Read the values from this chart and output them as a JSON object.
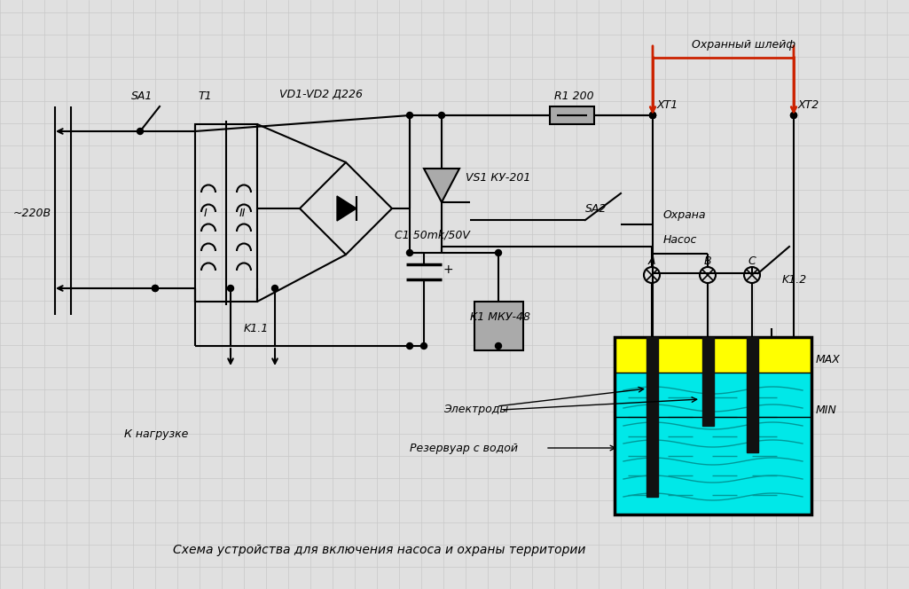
{
  "bg_color": "#e0e0e0",
  "grid_color": "#c8c8c8",
  "lc": "#000000",
  "red": "#cc2200",
  "gray": "#aaaaaa",
  "yellow": "#ffff00",
  "cyan": "#00e8e8",
  "dark": "#111111",
  "title": "Схема устройства для включения насоса и охраны территории",
  "lbl_voltage": "~220В",
  "lbl_SA1": "SA1",
  "lbl_T1": "T1",
  "lbl_VD": "VD1-VD2 Д226",
  "lbl_C1": "C1 50mk/50V",
  "lbl_K1": "K1 МКУ-48",
  "lbl_K11": "K1.1",
  "lbl_K12": "K1.2",
  "lbl_VS1": "VS1 КУ-201",
  "lbl_R1": "R1 200",
  "lbl_SA2": "SA2",
  "lbl_XT1": "XT1",
  "lbl_XT2": "XT2",
  "lbl_shleyf": "Охранный шлейф",
  "lbl_okhrana": "Охрана",
  "lbl_nasos": "Насос",
  "lbl_A": "A",
  "lbl_B": "B",
  "lbl_C": "C",
  "lbl_load": "К нагрузке",
  "lbl_el": "Электроды",
  "lbl_res": "Резервуар с водой",
  "lbl_MAX": "MAX",
  "lbl_MIN": "MIN",
  "lbl_I": "I",
  "lbl_II": "II"
}
